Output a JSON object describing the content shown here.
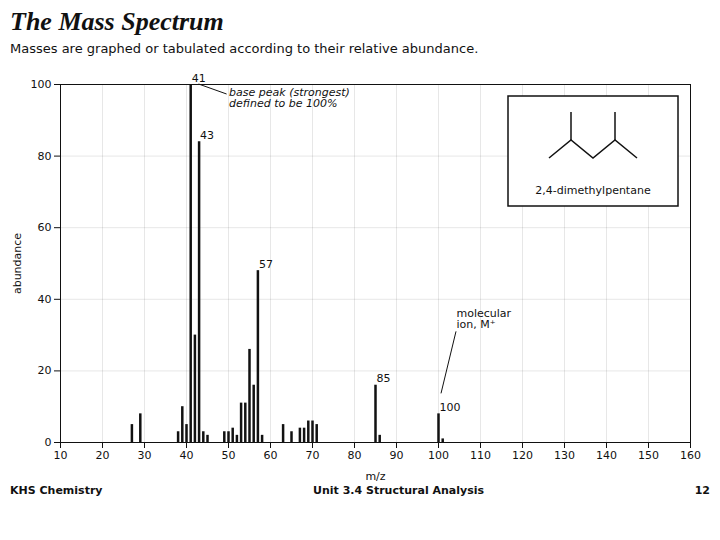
{
  "chart_data": {
    "type": "bar",
    "title": "The Mass Spectrum",
    "subtitle": "Masses are graphed or tabulated according to their relative abundance.",
    "xlabel": "m/z",
    "ylabel": "abundance",
    "x": [
      27,
      29,
      38,
      39,
      40,
      41,
      42,
      43,
      44,
      45,
      49,
      50,
      51,
      52,
      53,
      54,
      55,
      56,
      57,
      58,
      63,
      65,
      67,
      68,
      69,
      70,
      71,
      85,
      86,
      100,
      101
    ],
    "values": [
      5,
      8,
      3,
      10,
      5,
      100,
      30,
      84,
      3,
      2,
      3,
      3,
      4,
      2,
      11,
      11,
      26,
      16,
      48,
      2,
      5,
      3,
      4,
      4,
      6,
      6,
      5,
      16,
      2,
      8,
      1
    ],
    "color": "#111111",
    "xlim": [
      10,
      160
    ],
    "ylim": [
      0,
      100
    ],
    "xticks": [
      10,
      20,
      30,
      40,
      50,
      60,
      70,
      80,
      90,
      100,
      110,
      120,
      130,
      140,
      150,
      160
    ],
    "yticks": [
      0,
      20,
      40,
      60,
      80,
      100
    ],
    "grid": true,
    "peak_labels": [
      {
        "text": "41",
        "x": 41,
        "y": 100
      },
      {
        "text": "43",
        "x": 43,
        "y": 84
      },
      {
        "text": "57",
        "x": 57,
        "y": 48
      },
      {
        "text": "85",
        "x": 85,
        "y": 16
      },
      {
        "text": "100",
        "x": 100,
        "y": 8
      }
    ],
    "annotations": [
      {
        "text": "base peak (strongest)\ndefined to be 100%",
        "x": 43,
        "y": 100
      },
      {
        "text": "molecular\nion, M⁺",
        "x": 100,
        "y": 8
      }
    ],
    "compound": "2,4-dimethylpentane",
    "footer": [
      "KHS Chemistry",
      "Unit 3.4 Structural Analysis",
      "12"
    ]
  }
}
